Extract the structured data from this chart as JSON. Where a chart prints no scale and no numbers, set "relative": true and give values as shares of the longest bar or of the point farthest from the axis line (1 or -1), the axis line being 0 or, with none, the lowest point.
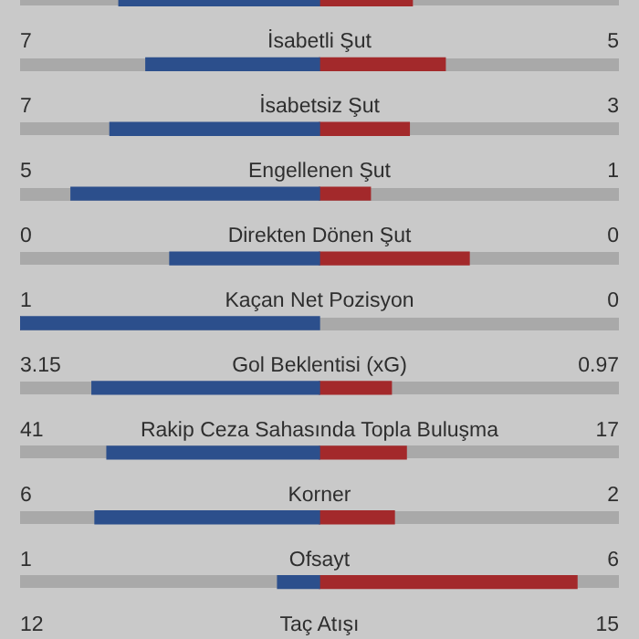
{
  "chart_data": {
    "type": "bar",
    "orientation": "horizontal",
    "relative": true,
    "stacked": true,
    "categories": [
      null,
      "İsabetli Şut",
      "İsabetsiz Şut",
      "Engellenen Şut",
      "Direkten Dönen Şut",
      "Kaçan Net Pozisyon",
      "Gol Beklentisi (xG)",
      "Rakip Ceza Sahasında Topla Buluşma",
      "Korner",
      "Ofsayt",
      "Taç Atışı"
    ],
    "series": [
      {
        "color": "#2c4f8c",
        "values": [
          -0.67,
          -0.58,
          -0.7,
          -0.83,
          -0.5,
          -1,
          -0.76,
          -0.71,
          -0.75,
          -0.14,
          null
        ]
      },
      {
        "color": "#a3292b",
        "values": [
          0.31,
          0.42,
          0.3,
          0.17,
          0.5,
          0,
          0.24,
          0.29,
          0.25,
          0.86,
          null
        ]
      }
    ],
    "annotations": [
      "7",
      "5",
      "7",
      "3",
      "5",
      "1",
      "0",
      "0",
      "1",
      "0",
      "3.15",
      "0.97",
      "41",
      "17",
      "6",
      "2",
      "1",
      "6",
      "12",
      "15"
    ]
  }
}
